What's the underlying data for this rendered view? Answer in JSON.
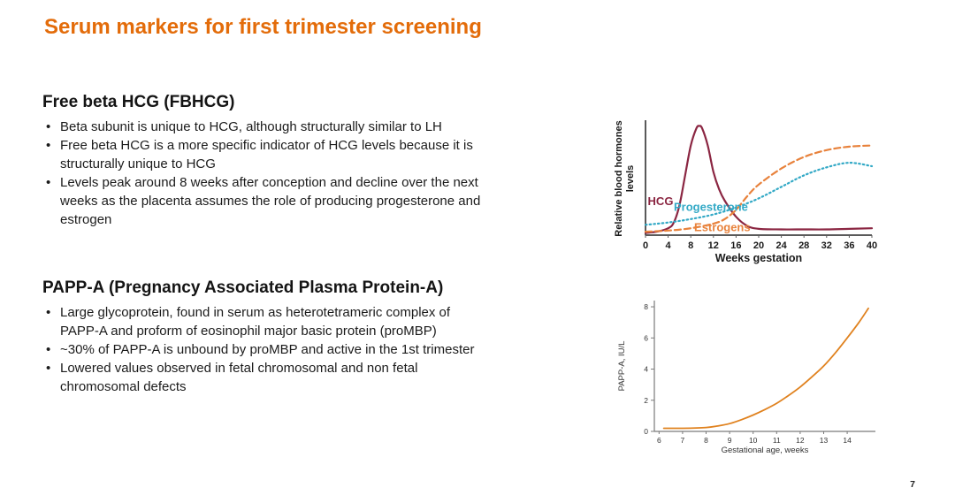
{
  "slide": {
    "title": "Serum markers for first trimester screening",
    "title_color": "#E36C0A",
    "page_number": "7"
  },
  "sections": [
    {
      "heading": "Free beta HCG (FBHCG)",
      "bullets": [
        "Beta subunit is unique to HCG, although structurally similar to LH",
        "Free beta HCG is a more specific indicator of HCG levels because it is\nstructurally unique to HCG",
        "Levels peak around 8 weeks after conception and decline over the next\nweeks as the placenta assumes the role of producing progesterone and\nestrogen"
      ]
    },
    {
      "heading": "PAPP-A (Pregnancy Associated Plasma Protein-A)",
      "bullets": [
        "Large glycoprotein, found in serum as heterotetrameric complex of\nPAPP-A and proform of eosinophil major basic protein (proMBP)",
        "~30% of PAPP-A is unbound by proMBP and active in the 1st trimester",
        "Lowered values observed in fetal chromosomal and non fetal\nchromosomal defects"
      ]
    }
  ],
  "chart_data": [
    {
      "type": "line",
      "title": "",
      "xlabel": "Weeks gestation",
      "ylabel": "Relative blood hormones levels",
      "xlim": [
        0,
        40
      ],
      "ylim": [
        0,
        1
      ],
      "x_ticks": [
        0,
        4,
        8,
        12,
        16,
        20,
        24,
        28,
        32,
        36,
        40
      ],
      "grid": false,
      "legend_position": "inline-labels",
      "series": [
        {
          "name": "HCG",
          "color": "#8B2642",
          "line_style": "solid",
          "x": [
            0,
            2,
            4,
            5,
            6,
            7,
            8,
            9,
            9.5,
            10,
            11,
            12,
            13,
            14,
            16,
            18,
            20,
            24,
            28,
            32,
            36,
            40
          ],
          "y": [
            0.02,
            0.03,
            0.06,
            0.11,
            0.26,
            0.52,
            0.78,
            0.93,
            0.95,
            0.93,
            0.78,
            0.55,
            0.4,
            0.3,
            0.16,
            0.08,
            0.055,
            0.05,
            0.05,
            0.05,
            0.055,
            0.06
          ]
        },
        {
          "name": "Progesterone",
          "color": "#33A9C6",
          "line_style": "dotted",
          "x": [
            0,
            4,
            8,
            12,
            16,
            20,
            24,
            28,
            32,
            36,
            40
          ],
          "y": [
            0.09,
            0.11,
            0.14,
            0.18,
            0.24,
            0.32,
            0.42,
            0.52,
            0.59,
            0.63,
            0.6
          ]
        },
        {
          "name": "Estrogens",
          "color": "#E8823C",
          "line_style": "dashed",
          "x": [
            0,
            4,
            8,
            12,
            14,
            16,
            18,
            20,
            24,
            28,
            32,
            36,
            40
          ],
          "y": [
            0.03,
            0.04,
            0.06,
            0.1,
            0.14,
            0.22,
            0.34,
            0.44,
            0.58,
            0.68,
            0.74,
            0.77,
            0.78
          ]
        }
      ],
      "annotations": [
        {
          "text": "HCG",
          "x": 0.4,
          "y": 0.26,
          "color": "#8B2642"
        },
        {
          "text": "Progesterone",
          "x": 5.0,
          "y": 0.21,
          "color": "#33A9C6"
        },
        {
          "text": "Estrogens",
          "x": 8.6,
          "y": 0.035,
          "color": "#E8823C"
        }
      ]
    },
    {
      "type": "line",
      "title": "",
      "xlabel": "Gestational age, weeks",
      "ylabel": "PAPP-A, IU/L",
      "xlim": [
        5.8,
        15.2
      ],
      "ylim": [
        0,
        8.4
      ],
      "x_ticks": [
        6,
        7,
        8,
        9,
        10,
        11,
        12,
        13,
        14
      ],
      "y_ticks": [
        0,
        2,
        4,
        6,
        8
      ],
      "grid": false,
      "series": [
        {
          "name": "PAPP-A",
          "color": "#E0821F",
          "line_style": "solid",
          "x": [
            6.2,
            7,
            8,
            8.5,
            9,
            9.5,
            10,
            10.5,
            11,
            11.5,
            12,
            12.5,
            13,
            13.5,
            14,
            14.5,
            14.9
          ],
          "y": [
            0.2,
            0.2,
            0.25,
            0.35,
            0.5,
            0.75,
            1.05,
            1.4,
            1.8,
            2.3,
            2.85,
            3.5,
            4.2,
            5.05,
            6.0,
            7.0,
            7.9
          ]
        }
      ],
      "annotations": []
    }
  ]
}
